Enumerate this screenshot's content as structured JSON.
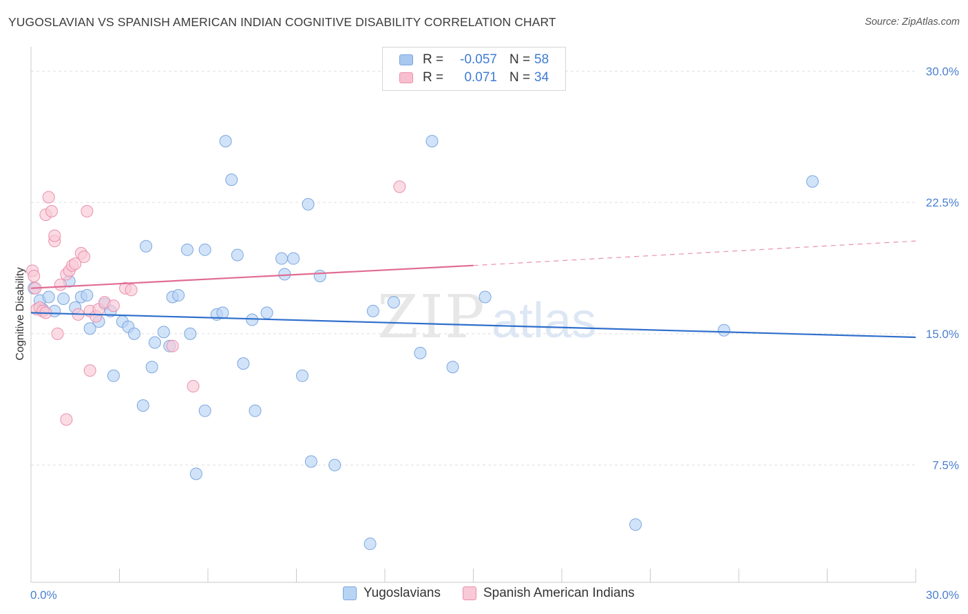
{
  "title": "YUGOSLAVIAN VS SPANISH AMERICAN INDIAN COGNITIVE DISABILITY CORRELATION CHART",
  "source": "Source: ZipAtlas.com",
  "watermark": "ZIPatlas",
  "legend": {
    "rows": [
      {
        "r_label": "R =",
        "r_value": "-0.057",
        "n_label": "N =",
        "n_value": "58",
        "color": "#a8c8f0",
        "border": "#7ba6e0"
      },
      {
        "r_label": "R =",
        "r_value": "0.071",
        "n_label": "N =",
        "n_value": "34",
        "color": "#f8bfd0",
        "border": "#ea8fab"
      }
    ]
  },
  "bottom_legend": [
    {
      "label": "Yugoslavians",
      "color": "#b8d4f4",
      "border": "#7ba6e0"
    },
    {
      "label": "Spanish American Indians",
      "color": "#f9c9d7",
      "border": "#ea8fab"
    }
  ],
  "chart_data": {
    "type": "scatter",
    "title": "YUGOSLAVIAN VS SPANISH AMERICAN INDIAN COGNITIVE DISABILITY CORRELATION CHART",
    "xlabel": "",
    "ylabel": "Cognitive Disability",
    "xlim": [
      0,
      30
    ],
    "ylim": [
      0.8,
      31
    ],
    "x_tick_labels": [
      "0.0%",
      "30.0%"
    ],
    "y_ticks": [
      7.5,
      15.0,
      22.5,
      30.0
    ],
    "y_tick_labels": [
      "7.5%",
      "15.0%",
      "22.5%",
      "30.0%"
    ],
    "grid": true,
    "series": [
      {
        "name": "Yugoslavians",
        "color": "#7ba6e0",
        "fill": "#b8d4f4",
        "trend": {
          "x": [
            0,
            30
          ],
          "y": [
            16.2,
            14.8
          ],
          "color": "#2f6fcc"
        },
        "points": [
          [
            0.1,
            17.6
          ],
          [
            0.3,
            16.9
          ],
          [
            0.4,
            16.4
          ],
          [
            0.6,
            17.1
          ],
          [
            0.8,
            16.3
          ],
          [
            1.1,
            17.0
          ],
          [
            1.3,
            18.0
          ],
          [
            1.5,
            16.5
          ],
          [
            1.7,
            17.1
          ],
          [
            1.9,
            17.2
          ],
          [
            2.0,
            15.3
          ],
          [
            2.3,
            15.7
          ],
          [
            2.5,
            16.7
          ],
          [
            2.7,
            16.3
          ],
          [
            2.8,
            12.6
          ],
          [
            3.1,
            15.7
          ],
          [
            3.3,
            15.4
          ],
          [
            3.5,
            15.0
          ],
          [
            3.8,
            10.9
          ],
          [
            3.9,
            20.0
          ],
          [
            4.1,
            13.1
          ],
          [
            4.2,
            14.5
          ],
          [
            4.5,
            15.1
          ],
          [
            4.7,
            14.3
          ],
          [
            4.8,
            17.1
          ],
          [
            5.0,
            17.2
          ],
          [
            5.3,
            19.8
          ],
          [
            5.4,
            15.0
          ],
          [
            5.6,
            7.0
          ],
          [
            5.9,
            10.6
          ],
          [
            5.9,
            19.8
          ],
          [
            6.3,
            16.1
          ],
          [
            6.5,
            16.2
          ],
          [
            6.6,
            26.0
          ],
          [
            6.8,
            23.8
          ],
          [
            7.0,
            19.5
          ],
          [
            7.2,
            13.3
          ],
          [
            7.5,
            15.8
          ],
          [
            7.6,
            10.6
          ],
          [
            8.0,
            16.2
          ],
          [
            8.5,
            19.3
          ],
          [
            8.6,
            18.4
          ],
          [
            8.9,
            19.3
          ],
          [
            9.2,
            12.6
          ],
          [
            9.4,
            22.4
          ],
          [
            9.5,
            7.7
          ],
          [
            9.8,
            18.3
          ],
          [
            10.3,
            7.5
          ],
          [
            11.5,
            3.0
          ],
          [
            11.6,
            16.3
          ],
          [
            12.3,
            16.8
          ],
          [
            13.2,
            13.9
          ],
          [
            13.6,
            26.0
          ],
          [
            14.3,
            13.1
          ],
          [
            15.4,
            17.1
          ],
          [
            20.5,
            4.1
          ],
          [
            23.5,
            15.2
          ],
          [
            26.5,
            23.7
          ]
        ]
      },
      {
        "name": "Spanish American Indians",
        "color": "#ea8fab",
        "fill": "#f9c9d7",
        "trend": {
          "x": [
            0,
            15.0
          ],
          "y": [
            17.6,
            18.9
          ],
          "color": "#e06c92"
        },
        "trend_ext": {
          "x": [
            15.0,
            30
          ],
          "y": [
            18.9,
            20.3
          ],
          "color": "#ea8fab"
        },
        "points": [
          [
            0.05,
            18.6
          ],
          [
            0.1,
            18.3
          ],
          [
            0.15,
            17.6
          ],
          [
            0.2,
            16.4
          ],
          [
            0.3,
            16.5
          ],
          [
            0.4,
            16.3
          ],
          [
            0.5,
            16.2
          ],
          [
            0.5,
            21.8
          ],
          [
            0.6,
            22.8
          ],
          [
            0.7,
            22.0
          ],
          [
            0.8,
            20.3
          ],
          [
            0.8,
            20.6
          ],
          [
            0.9,
            15.0
          ],
          [
            1.0,
            17.8
          ],
          [
            1.2,
            18.4
          ],
          [
            1.3,
            18.6
          ],
          [
            1.4,
            18.9
          ],
          [
            1.5,
            19.0
          ],
          [
            1.6,
            16.1
          ],
          [
            1.7,
            19.6
          ],
          [
            1.8,
            19.4
          ],
          [
            1.9,
            22.0
          ],
          [
            2.0,
            12.9
          ],
          [
            2.0,
            16.3
          ],
          [
            2.2,
            16.0
          ],
          [
            2.3,
            16.4
          ],
          [
            2.5,
            16.8
          ],
          [
            2.8,
            16.6
          ],
          [
            1.2,
            10.1
          ],
          [
            3.2,
            17.6
          ],
          [
            3.4,
            17.5
          ],
          [
            4.8,
            14.3
          ],
          [
            5.5,
            12.0
          ],
          [
            12.5,
            23.4
          ]
        ]
      }
    ]
  }
}
